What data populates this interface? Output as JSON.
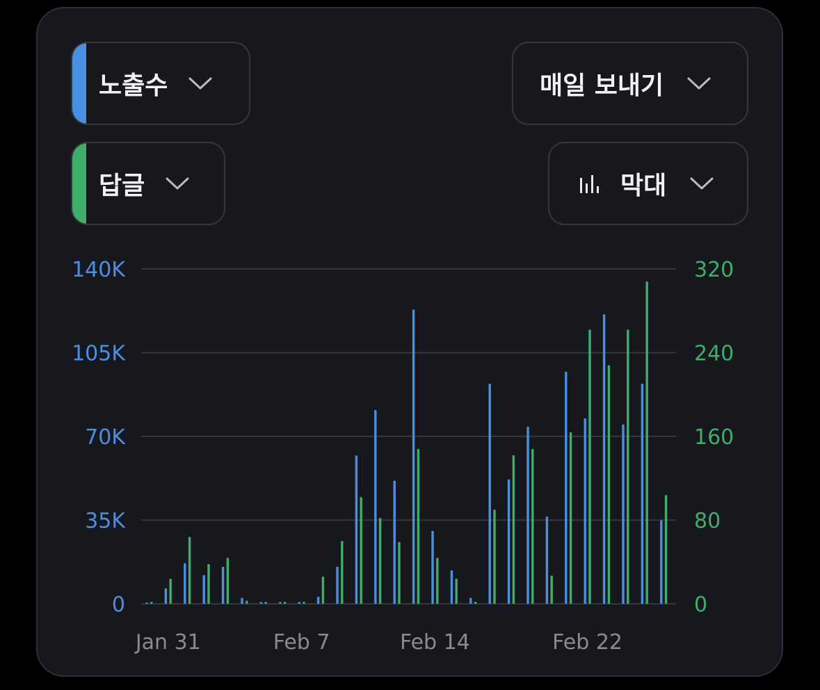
{
  "controls": {
    "metric_primary": {
      "label": "노출수",
      "color": "#4a90e2",
      "icon": "chevron-down-icon"
    },
    "metric_secondary": {
      "label": "답글",
      "color": "#3fae6a",
      "icon": "chevron-down-icon"
    },
    "frequency": {
      "label": "매일 보내기",
      "icon": "chevron-down-icon"
    },
    "chart_type": {
      "label": "막대",
      "icon": "bar-chart-icon"
    }
  },
  "chart_data": {
    "type": "bar",
    "x": [
      "Jan 30",
      "Jan 31",
      "Feb 1",
      "Feb 2",
      "Feb 3",
      "Feb 4",
      "Feb 5",
      "Feb 6",
      "Feb 7",
      "Feb 8",
      "Feb 9",
      "Feb 10",
      "Feb 11",
      "Feb 12",
      "Feb 13",
      "Feb 14",
      "Feb 15",
      "Feb 16",
      "Feb 17",
      "Feb 18",
      "Feb 19",
      "Feb 20",
      "Feb 21",
      "Feb 22",
      "Feb 23",
      "Feb 24",
      "Feb 25",
      "Feb 26"
    ],
    "x_tick_labels": [
      "Jan 31",
      "Feb 7",
      "Feb 14",
      "Feb 22"
    ],
    "series": [
      {
        "axis": "left",
        "color": "#4a90e2",
        "values": [
          500,
          6500,
          17000,
          12000,
          15500,
          2500,
          800,
          800,
          800,
          3000,
          15500,
          62000,
          81000,
          51500,
          123000,
          30500,
          14000,
          2500,
          92000,
          52000,
          74000,
          36500,
          97000,
          77500,
          121000,
          75000,
          92000,
          35000
        ]
      },
      {
        "axis": "right",
        "color": "#3fae6a",
        "values": [
          2,
          24,
          64,
          38,
          44,
          3,
          2,
          2,
          2,
          26,
          60,
          102,
          82,
          59,
          148,
          44,
          24,
          2,
          90,
          142,
          148,
          27,
          164,
          262,
          228,
          262,
          308,
          104
        ]
      }
    ],
    "y_left": {
      "ticks": [
        "0",
        "35K",
        "70K",
        "105K",
        "140K"
      ],
      "ylim": [
        0,
        140000
      ],
      "color": "#4a90e2"
    },
    "y_right": {
      "ticks": [
        "0",
        "80",
        "160",
        "240",
        "320"
      ],
      "ylim": [
        0,
        320
      ],
      "color": "#3fae6a"
    },
    "grid": true
  }
}
